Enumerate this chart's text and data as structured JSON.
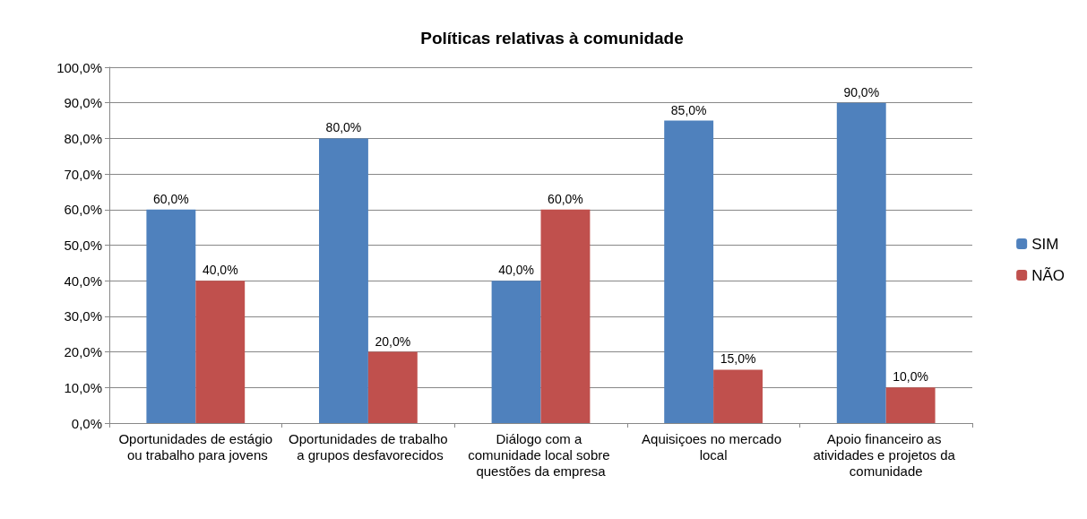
{
  "chart_data": {
    "type": "bar",
    "title": "Políticas relativas à comunidade",
    "categories": [
      "Oportunidades de estágio ou trabalho para jovens",
      "Oportunidades de trabalho a grupos desfavorecidos",
      "Diálogo com a comunidade local sobre questões da empresa",
      "Aquisiçoes no mercado local",
      "Apoio financeiro as atividades e projetos da comunidade"
    ],
    "series": [
      {
        "name": "SIM",
        "color": "#4f81bd",
        "values": [
          60,
          80,
          40,
          85,
          90
        ],
        "value_labels": [
          "60,0%",
          "80,0%",
          "40,0%",
          "85,0%",
          "90,0%"
        ]
      },
      {
        "name": "NÃO",
        "color": "#c0504d",
        "values": [
          40,
          20,
          60,
          15,
          10
        ],
        "value_labels": [
          "40,0%",
          "20,0%",
          "60,0%",
          "15,0%",
          "10,0%"
        ]
      }
    ],
    "ylim": [
      0,
      100
    ],
    "yticks": [
      {
        "value": 0,
        "label": "0,0%"
      },
      {
        "value": 10,
        "label": "10,0%"
      },
      {
        "value": 20,
        "label": "20,0%"
      },
      {
        "value": 30,
        "label": "30,0%"
      },
      {
        "value": 40,
        "label": "40,0%"
      },
      {
        "value": 50,
        "label": "50,0%"
      },
      {
        "value": 60,
        "label": "60,0%"
      },
      {
        "value": 70,
        "label": "70,0%"
      },
      {
        "value": 80,
        "label": "80,0%"
      },
      {
        "value": 90,
        "label": "90,0%"
      },
      {
        "value": 100,
        "label": "100,0%"
      }
    ],
    "grid": "y",
    "legend": "right"
  }
}
